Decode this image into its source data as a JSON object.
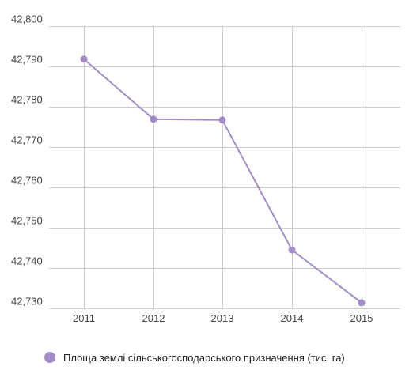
{
  "chart_data": {
    "type": "line",
    "x": [
      "2011",
      "2012",
      "2013",
      "2014",
      "2015"
    ],
    "series": [
      {
        "name": "Площа землі сільськогосподарського призначення (тис. га)",
        "values": [
          42791.8,
          42776.9,
          42776.7,
          42744.5,
          42731.4
        ],
        "color": "#a48cc8"
      }
    ],
    "y_ticks": [
      "42,730",
      "42,740",
      "42,750",
      "42,760",
      "42,770",
      "42,780",
      "42,790",
      "42,800"
    ],
    "ylim": [
      42730,
      42800
    ],
    "grid": true,
    "legend_position": "bottom-left"
  }
}
